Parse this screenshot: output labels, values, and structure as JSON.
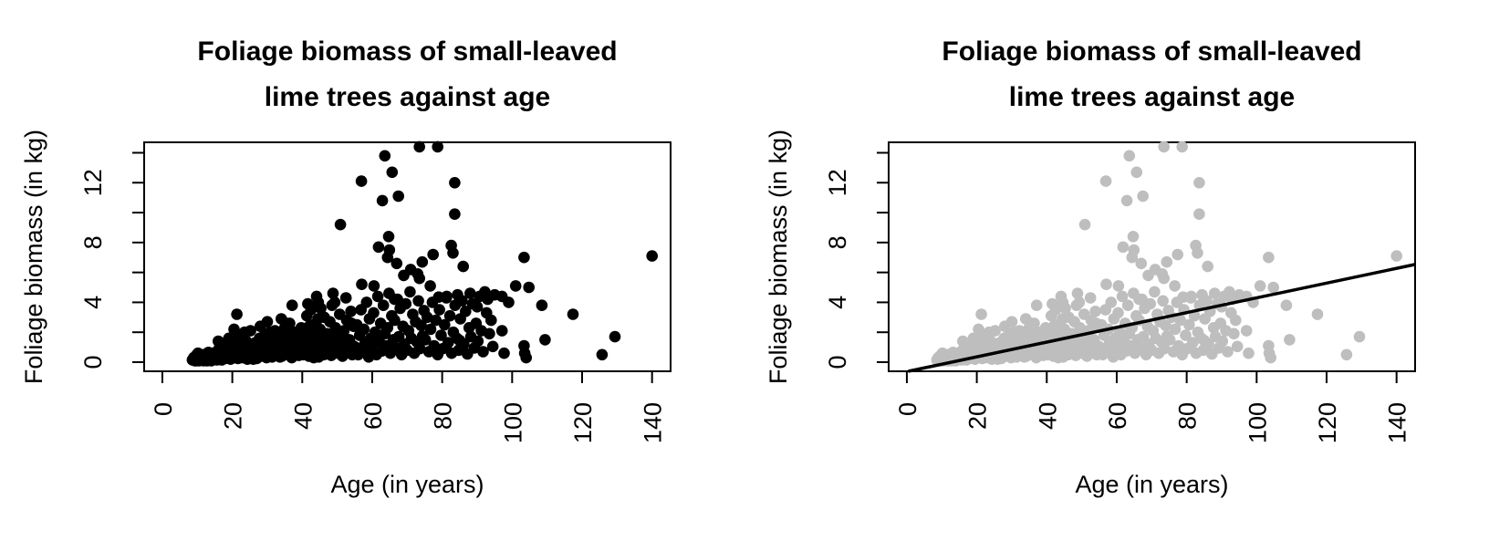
{
  "chart_data": {
    "type": "scatter",
    "title_lines": [
      "Foliage biomass of small-leaved",
      "lime trees against age"
    ],
    "xlabel": "Age (in years)",
    "ylabel": "Foliage biomass (in kg)",
    "xlim": [
      -5.2,
      145.3
    ],
    "ylim": [
      -0.61,
      14.7
    ],
    "x_ticks": [
      0,
      20,
      40,
      60,
      80,
      100,
      120,
      140
    ],
    "y_ticks": [
      0,
      2,
      4,
      6,
      8,
      10,
      12,
      14
    ],
    "y_labeled_ticks": [
      0,
      4,
      8,
      12
    ],
    "colors": {
      "left_points": "#000000",
      "right_points": "#bebebe",
      "line": "#000000",
      "axis": "#000000"
    },
    "panels": [
      {
        "id": "left",
        "point_color_key": "left_points",
        "regression_line": null
      },
      {
        "id": "right",
        "point_color_key": "right_points",
        "regression_line": {
          "slope": 0.0493,
          "intercept": -0.63
        }
      }
    ],
    "points": [
      [
        73.5,
        14.4
      ],
      [
        78.7,
        14.4
      ],
      [
        63.6,
        13.8
      ],
      [
        65.7,
        12.7
      ],
      [
        56.9,
        12.1
      ],
      [
        83.6,
        12.0
      ],
      [
        67.5,
        11.1
      ],
      [
        62.9,
        10.8
      ],
      [
        83.6,
        9.9
      ],
      [
        50.9,
        9.2
      ],
      [
        64.7,
        8.4
      ],
      [
        61.8,
        7.7
      ],
      [
        64.9,
        7.5
      ],
      [
        77.4,
        7.2
      ],
      [
        82.6,
        7.8
      ],
      [
        83.1,
        7.3
      ],
      [
        103.4,
        7.0
      ],
      [
        140,
        7.1
      ],
      [
        64.4,
        7.0
      ],
      [
        67,
        6.6
      ],
      [
        74.3,
        6.7
      ],
      [
        86,
        6.4
      ],
      [
        60.5,
        5.1
      ],
      [
        66.4,
        4.2
      ],
      [
        73.5,
        5.6
      ],
      [
        76.6,
        5.1
      ],
      [
        81.3,
        4.4
      ],
      [
        84.4,
        4.5
      ],
      [
        92.2,
        4.7
      ],
      [
        93,
        4.2
      ],
      [
        101,
        5.1
      ],
      [
        97.1,
        4.4
      ],
      [
        95,
        4.5
      ],
      [
        108.5,
        3.8
      ],
      [
        117.4,
        3.2
      ],
      [
        97.1,
        2.1
      ],
      [
        97.7,
        0.6
      ],
      [
        103.4,
        1.1
      ],
      [
        103.6,
        0.6
      ],
      [
        104,
        0.3
      ],
      [
        109.4,
        1.5
      ],
      [
        125.7,
        0.5
      ],
      [
        129.4,
        1.7
      ],
      [
        21.3,
        3.2
      ],
      [
        25.2,
        2.1
      ],
      [
        37.1,
        3.8
      ],
      [
        41.6,
        3.9
      ],
      [
        44.6,
        4.0
      ],
      [
        36.4,
        2.6
      ],
      [
        39.7,
        2.3
      ],
      [
        42,
        2.4
      ],
      [
        99,
        4.0
      ],
      [
        104.8,
        5.0
      ],
      [
        48.8,
        4.6
      ],
      [
        8.6,
        0.15
      ],
      [
        9,
        0.3
      ],
      [
        9.3,
        0.1
      ],
      [
        9.7,
        0.45
      ],
      [
        10,
        0.2
      ],
      [
        10.2,
        0.6
      ],
      [
        10.5,
        0.1
      ],
      [
        10.8,
        0.35
      ],
      [
        11,
        0.15
      ],
      [
        11.2,
        0.5
      ],
      [
        11.5,
        0.25
      ],
      [
        11.8,
        0.1
      ],
      [
        12,
        0.4
      ],
      [
        12.2,
        0.2
      ],
      [
        12.5,
        0.55
      ],
      [
        12.8,
        0.1
      ],
      [
        13,
        0.3
      ],
      [
        13.2,
        0.65
      ],
      [
        13.5,
        0.2
      ],
      [
        13.8,
        0.45
      ],
      [
        14,
        0.1
      ],
      [
        14.2,
        0.3
      ],
      [
        14.5,
        0.6
      ],
      [
        14.8,
        0.2
      ],
      [
        9.5,
        0.25
      ],
      [
        10.3,
        0.45
      ],
      [
        11.3,
        0.3
      ],
      [
        12.3,
        0.15
      ],
      [
        13.3,
        0.4
      ],
      [
        14.3,
        0.25
      ],
      [
        9.8,
        0.1
      ],
      [
        10.7,
        0.25
      ],
      [
        11.7,
        0.45
      ],
      [
        12.7,
        0.3
      ],
      [
        13.7,
        0.15
      ],
      [
        14.7,
        0.4
      ],
      [
        10.1,
        0.35
      ],
      [
        13.1,
        0.2
      ],
      [
        15,
        0.2
      ],
      [
        15.3,
        0.5
      ],
      [
        15.6,
        0.15
      ],
      [
        15.9,
        0.8
      ],
      [
        16.2,
        0.3
      ],
      [
        16.5,
        0.6
      ],
      [
        16.8,
        0.2
      ],
      [
        17.1,
        1.0
      ],
      [
        17.4,
        0.4
      ],
      [
        17.7,
        0.7
      ],
      [
        18,
        0.25
      ],
      [
        18.3,
        0.55
      ],
      [
        18.6,
        1.2
      ],
      [
        18.9,
        0.35
      ],
      [
        19.2,
        0.8
      ],
      [
        19.5,
        0.2
      ],
      [
        19.8,
        0.6
      ],
      [
        20.1,
        1.0
      ],
      [
        20.4,
        0.3
      ],
      [
        20.7,
        0.75
      ],
      [
        21,
        0.45
      ],
      [
        21.3,
        1.3
      ],
      [
        21.6,
        0.25
      ],
      [
        21.9,
        0.9
      ],
      [
        22.2,
        0.5
      ],
      [
        22.5,
        1.1
      ],
      [
        22.8,
        0.3
      ],
      [
        23.1,
        0.7
      ],
      [
        23.4,
        1.5
      ],
      [
        23.7,
        0.4
      ],
      [
        24,
        0.85
      ],
      [
        24.3,
        0.2
      ],
      [
        24.6,
        1.2
      ],
      [
        24.9,
        0.55
      ],
      [
        16,
        1.4
      ],
      [
        17,
        0.15
      ],
      [
        18.5,
        0.95
      ],
      [
        19,
        1.6
      ],
      [
        20,
        0.4
      ],
      [
        21.5,
        0.65
      ],
      [
        22,
        1.8
      ],
      [
        23,
        0.5
      ],
      [
        24,
        1.4
      ],
      [
        25,
        0.9
      ],
      [
        20.5,
        2.2
      ],
      [
        23.5,
        2.0
      ],
      [
        19.3,
        0.3
      ],
      [
        24.7,
        0.7
      ],
      [
        25.4,
        0.3
      ],
      [
        25.8,
        0.9
      ],
      [
        26.2,
        0.5
      ],
      [
        26.6,
        1.3
      ],
      [
        27,
        0.25
      ],
      [
        27.4,
        0.8
      ],
      [
        27.8,
        1.6
      ],
      [
        28.2,
        0.4
      ],
      [
        28.6,
        1.0
      ],
      [
        29,
        0.6
      ],
      [
        29.4,
        1.9
      ],
      [
        29.8,
        0.3
      ],
      [
        30.2,
        1.2
      ],
      [
        30.6,
        0.7
      ],
      [
        31,
        1.5
      ],
      [
        31.4,
        0.35
      ],
      [
        31.8,
        0.95
      ],
      [
        32.2,
        2.1
      ],
      [
        32.6,
        0.5
      ],
      [
        33,
        1.3
      ],
      [
        33.4,
        0.8
      ],
      [
        33.8,
        1.7
      ],
      [
        34.2,
        0.4
      ],
      [
        34.6,
        1.1
      ],
      [
        35,
        2.3
      ],
      [
        35.4,
        0.6
      ],
      [
        35.8,
        1.4
      ],
      [
        36.2,
        0.9
      ],
      [
        36.6,
        1.8
      ],
      [
        37,
        0.3
      ],
      [
        37.4,
        1.2
      ],
      [
        37.8,
        2.0
      ],
      [
        38.2,
        0.7
      ],
      [
        38.6,
        1.5
      ],
      [
        39,
        0.45
      ],
      [
        39.4,
        1.0
      ],
      [
        39.8,
        1.9
      ],
      [
        26,
        0.2
      ],
      [
        28,
        2.4
      ],
      [
        30,
        2.7
      ],
      [
        32,
        0.85
      ],
      [
        34,
        2.9
      ],
      [
        36,
        0.55
      ],
      [
        38,
        1.25
      ],
      [
        40,
        0.75
      ],
      [
        27.2,
        1.1
      ],
      [
        29.6,
        0.5
      ],
      [
        31.6,
        1.7
      ],
      [
        33.6,
        0.35
      ],
      [
        35.6,
        2.6
      ],
      [
        37.6,
        0.65
      ],
      [
        39.6,
        1.45
      ],
      [
        26.8,
        0.75
      ],
      [
        30.8,
        2.0
      ],
      [
        34.8,
        1.55
      ],
      [
        40.3,
        0.5
      ],
      [
        40.7,
        1.2
      ],
      [
        41.1,
        0.8
      ],
      [
        41.5,
        2.0
      ],
      [
        41.9,
        0.4
      ],
      [
        42.3,
        1.5
      ],
      [
        42.7,
        0.9
      ],
      [
        43.1,
        2.5
      ],
      [
        43.5,
        0.6
      ],
      [
        43.9,
        1.8
      ],
      [
        44.3,
        1.1
      ],
      [
        44.7,
        0.35
      ],
      [
        45.1,
        2.2
      ],
      [
        45.5,
        0.8
      ],
      [
        45.9,
        1.4
      ],
      [
        46.3,
        3.0
      ],
      [
        46.7,
        0.55
      ],
      [
        47.1,
        1.9
      ],
      [
        47.5,
        1.0
      ],
      [
        47.9,
        2.7
      ],
      [
        48.3,
        0.45
      ],
      [
        48.7,
        1.6
      ],
      [
        49.1,
        0.9
      ],
      [
        49.5,
        2.3
      ],
      [
        49.9,
        1.3
      ],
      [
        50.3,
        0.6
      ],
      [
        50.7,
        3.2
      ],
      [
        51.1,
        1.7
      ],
      [
        51.5,
        0.4
      ],
      [
        51.9,
        2.1
      ],
      [
        52.3,
        1.0
      ],
      [
        52.7,
        2.8
      ],
      [
        53.1,
        0.7
      ],
      [
        53.5,
        1.5
      ],
      [
        53.9,
        3.4
      ],
      [
        54.3,
        0.5
      ],
      [
        54.7,
        2.4
      ],
      [
        41.3,
        3.1
      ],
      [
        43.3,
        0.3
      ],
      [
        45.3,
        3.6
      ],
      [
        47.3,
        0.7
      ],
      [
        49.3,
        4.0
      ],
      [
        51.3,
        1.2
      ],
      [
        53.3,
        0.9
      ],
      [
        42.5,
        3.5
      ],
      [
        44.5,
        2.9
      ],
      [
        46.5,
        1.25
      ],
      [
        48.5,
        3.8
      ],
      [
        50.5,
        2.0
      ],
      [
        52.5,
        4.3
      ],
      [
        54.5,
        1.1
      ],
      [
        44.1,
        4.4
      ],
      [
        46.1,
        0.5
      ],
      [
        52.1,
        1.6
      ],
      [
        54.1,
        2.6
      ],
      [
        55.2,
        1.0
      ],
      [
        55.6,
        2.5
      ],
      [
        56,
        0.5
      ],
      [
        56.4,
        1.8
      ],
      [
        56.8,
        3.5
      ],
      [
        57.2,
        0.8
      ],
      [
        57.6,
        2.2
      ],
      [
        58,
        1.3
      ],
      [
        58.4,
        4.0
      ],
      [
        58.8,
        0.6
      ],
      [
        59.2,
        2.9
      ],
      [
        59.6,
        1.6
      ],
      [
        60,
        0.9
      ],
      [
        60.4,
        3.3
      ],
      [
        60.8,
        2.0
      ],
      [
        61.2,
        0.5
      ],
      [
        61.6,
        4.4
      ],
      [
        62,
        1.4
      ],
      [
        62.4,
        2.6
      ],
      [
        62.8,
        0.75
      ],
      [
        63.2,
        3.8
      ],
      [
        63.6,
        1.9
      ],
      [
        64,
        1.1
      ],
      [
        64.4,
        2.3
      ],
      [
        64.8,
        4.6
      ],
      [
        65.2,
        0.6
      ],
      [
        65.6,
        3.1
      ],
      [
        66,
        1.5
      ],
      [
        66.4,
        2.8
      ],
      [
        66.8,
        0.95
      ],
      [
        67.2,
        4.2
      ],
      [
        67.6,
        1.7
      ],
      [
        68,
        3.6
      ],
      [
        68.4,
        0.5
      ],
      [
        68.8,
        2.4
      ],
      [
        69.2,
        1.2
      ],
      [
        69.6,
        3.9
      ],
      [
        70,
        0.8
      ],
      [
        70.4,
        2.1
      ],
      [
        70.8,
        4.7
      ],
      [
        71.2,
        1.6
      ],
      [
        71.6,
        3.2
      ],
      [
        72,
        0.6
      ],
      [
        72.4,
        2.7
      ],
      [
        72.8,
        1.35
      ],
      [
        73.2,
        4.1
      ],
      [
        73.6,
        0.9
      ],
      [
        74,
        2.45
      ],
      [
        74.4,
        1.75
      ],
      [
        74.8,
        3.45
      ],
      [
        57,
        5.2
      ],
      [
        69,
        5.8
      ],
      [
        71,
        6.2
      ],
      [
        59,
        0.35
      ],
      [
        73,
        5.9
      ],
      [
        75.2,
        1.5
      ],
      [
        75.7,
        3.0
      ],
      [
        76.2,
        0.7
      ],
      [
        76.7,
        2.2
      ],
      [
        77.2,
        4.0
      ],
      [
        77.7,
        1.1
      ],
      [
        78.2,
        2.8
      ],
      [
        78.7,
        0.5
      ],
      [
        79.2,
        3.5
      ],
      [
        79.7,
        1.8
      ],
      [
        80.2,
        0.9
      ],
      [
        80.7,
        2.5
      ],
      [
        81.2,
        4.3
      ],
      [
        81.7,
        1.3
      ],
      [
        82.2,
        3.1
      ],
      [
        82.7,
        0.6
      ],
      [
        83.2,
        2.0
      ],
      [
        83.7,
        3.8
      ],
      [
        84.2,
        1.6
      ],
      [
        84.7,
        0.8
      ],
      [
        85.2,
        2.9
      ],
      [
        85.7,
        4.1
      ],
      [
        86.2,
        1.2
      ],
      [
        86.7,
        3.4
      ],
      [
        87.2,
        0.55
      ],
      [
        87.7,
        2.3
      ],
      [
        88.2,
        1.7
      ],
      [
        88.7,
        3.9
      ],
      [
        89.2,
        0.95
      ],
      [
        89.7,
        2.6
      ],
      [
        90.2,
        1.4
      ],
      [
        90.7,
        4.4
      ],
      [
        91.2,
        2.1
      ],
      [
        91.7,
        0.7
      ],
      [
        92.7,
        3.3
      ],
      [
        93.5,
        1.9
      ],
      [
        94,
        2.8
      ],
      [
        94.5,
        1.05
      ],
      [
        88,
        4.6
      ],
      [
        90,
        3.7
      ],
      [
        85,
        1.45
      ],
      [
        79,
        4.35
      ]
    ]
  }
}
